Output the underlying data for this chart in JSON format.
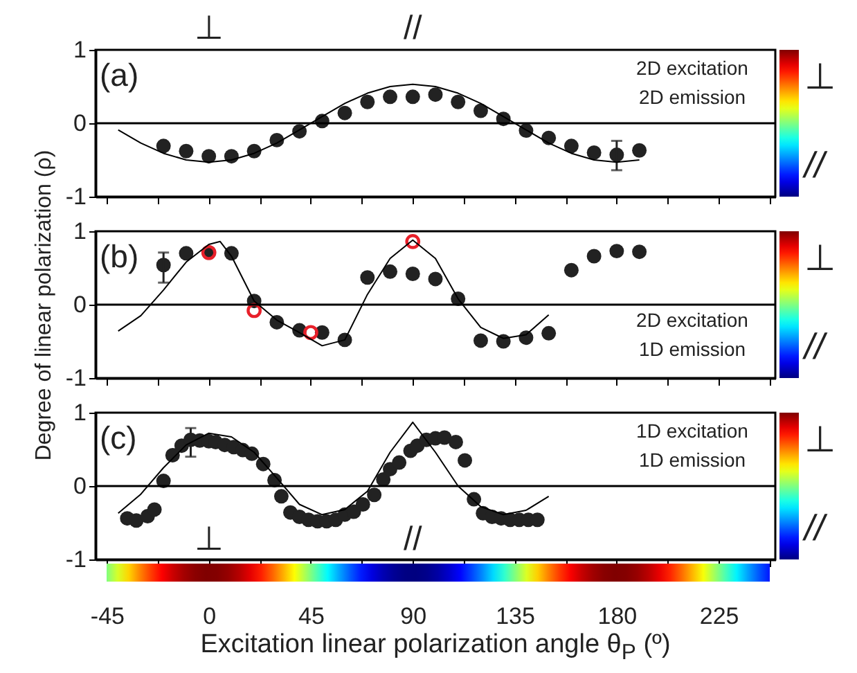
{
  "chart_data": [
    {
      "type": "scatter",
      "xlim": [
        -50,
        250
      ],
      "ylim": [
        -1,
        1
      ],
      "xticks": [
        -45,
        {
          "value": -22.5,
          "label": null
        },
        0,
        {
          "value": 22.5,
          "label": null
        },
        45,
        {
          "value": 67.5,
          "label": null
        },
        90,
        {
          "value": 112.5,
          "label": null
        },
        135,
        {
          "value": 157.5,
          "label": null
        },
        180,
        {
          "value": 202.5,
          "label": null
        },
        225,
        {
          "value": 247.5,
          "label": null
        }
      ],
      "yticks": [
        -1,
        0,
        1
      ],
      "tick_labels": "y",
      "series": [
        {
          "color": "#222222",
          "marker": "circle",
          "x": [
            -20,
            -10,
            0,
            10,
            20,
            30,
            40,
            50,
            60,
            70,
            80,
            90,
            100,
            110,
            120,
            130,
            140,
            150,
            160,
            170,
            180,
            190
          ],
          "values": [
            -0.31,
            -0.38,
            -0.45,
            -0.45,
            -0.38,
            -0.23,
            -0.11,
            0.03,
            0.14,
            0.29,
            0.36,
            0.36,
            0.39,
            0.29,
            0.17,
            0.06,
            -0.1,
            -0.2,
            -0.31,
            -0.4,
            -0.43,
            -0.37
          ],
          "errors": [
            null,
            null,
            null,
            null,
            null,
            null,
            null,
            null,
            null,
            null,
            null,
            null,
            null,
            null,
            null,
            null,
            null,
            null,
            null,
            null,
            [
              -0.64,
              -0.24
            ],
            null
          ]
        },
        {
          "type": "line",
          "color": "#000000",
          "x": [
            -40,
            -30,
            -20,
            -10,
            0,
            10,
            20,
            30,
            40,
            50,
            60,
            70,
            80,
            90,
            100,
            110,
            120,
            130,
            140,
            150,
            160,
            170,
            180,
            190
          ],
          "values": [
            -0.09,
            -0.27,
            -0.41,
            -0.5,
            -0.53,
            -0.5,
            -0.41,
            -0.27,
            -0.09,
            0.09,
            0.27,
            0.41,
            0.5,
            0.53,
            0.5,
            0.41,
            0.27,
            0.09,
            -0.09,
            -0.27,
            -0.41,
            -0.5,
            -0.53,
            -0.5
          ]
        }
      ],
      "ref_lines": [
        {
          "axis": "y",
          "value": 0
        }
      ],
      "annotations": [
        "(a)",
        "2D excitation",
        "2D emission",
        "⊥",
        "//",
        "⊥",
        "//"
      ]
    },
    {
      "type": "scatter",
      "xlim": [
        -50,
        250
      ],
      "ylim": [
        -1,
        1
      ],
      "xticks": [
        -45,
        {
          "value": -22.5,
          "label": null
        },
        0,
        {
          "value": 22.5,
          "label": null
        },
        45,
        {
          "value": 67.5,
          "label": null
        },
        90,
        {
          "value": 112.5,
          "label": null
        },
        135,
        {
          "value": 157.5,
          "label": null
        },
        180,
        {
          "value": 202.5,
          "label": null
        },
        225,
        {
          "value": 247.5,
          "label": null
        }
      ],
      "yticks": [
        -1,
        0,
        1
      ],
      "tick_labels": "y",
      "ylabel": "Degree of linear polarization (ρ)",
      "series": [
        {
          "color": "#222222",
          "marker": "circle",
          "x": [
            -20,
            -10,
            0,
            10,
            20,
            30,
            40,
            50,
            60,
            70,
            80,
            90,
            100,
            110,
            120,
            130,
            140,
            150,
            160,
            170,
            180,
            190
          ],
          "values": [
            0.54,
            0.7,
            0.71,
            0.7,
            0.05,
            -0.24,
            -0.35,
            -0.38,
            -0.48,
            0.37,
            0.45,
            0.42,
            0.35,
            0.08,
            -0.49,
            -0.5,
            -0.45,
            -0.39,
            0.47,
            0.66,
            0.73,
            0.72
          ],
          "errors": [
            [
              0.3,
              0.71
            ],
            null,
            null,
            null,
            null,
            null,
            null,
            null,
            null,
            null,
            null,
            null,
            null,
            null,
            null,
            null,
            null,
            null,
            null,
            null,
            null,
            null
          ]
        },
        {
          "color": "#e8202a",
          "marker": "circle",
          "x": [
            0,
            20,
            45,
            90
          ],
          "values": [
            0.71,
            -0.08,
            -0.38,
            0.86
          ]
        },
        {
          "type": "line",
          "color": "#000000",
          "x": [
            -40,
            -30,
            -20,
            -10,
            0,
            5,
            10,
            20,
            30,
            40,
            50,
            60,
            70,
            80,
            90,
            100,
            110,
            120,
            130,
            140,
            150
          ],
          "values": [
            -0.36,
            -0.15,
            0.2,
            0.58,
            0.82,
            0.86,
            0.66,
            0.05,
            -0.21,
            -0.38,
            -0.56,
            -0.48,
            0.14,
            0.63,
            0.88,
            0.63,
            0.08,
            -0.31,
            -0.46,
            -0.41,
            -0.14
          ]
        }
      ],
      "ref_lines": [
        {
          "axis": "y",
          "value": 0
        }
      ],
      "annotations": [
        "(b)",
        "2D excitation",
        "1D emission",
        "⊥",
        "//"
      ]
    },
    {
      "type": "scatter",
      "xlim": [
        -50,
        250
      ],
      "ylim": [
        -1,
        1
      ],
      "xticks": [
        -45,
        {
          "value": -22.5,
          "label": null
        },
        0,
        {
          "value": 22.5,
          "label": null
        },
        45,
        {
          "value": 67.5,
          "label": null
        },
        90,
        {
          "value": 112.5,
          "label": null
        },
        135,
        {
          "value": 157.5,
          "label": null
        },
        180,
        {
          "value": 202.5,
          "label": null
        },
        225,
        {
          "value": 247.5,
          "label": null
        }
      ],
      "yticks": [
        -1,
        0,
        1
      ],
      "xlabel": "Excitation linear polarization angle θ$_{P}$ (º)",
      "series": [
        {
          "color": "#222222",
          "marker": "circle",
          "x": [
            -36,
            -32,
            -27,
            -24,
            -20,
            -16,
            -12,
            -8,
            -4,
            0,
            3,
            7,
            11,
            15,
            19,
            24,
            29,
            32,
            36,
            40,
            44,
            48,
            52,
            56,
            60,
            64,
            68,
            73,
            77,
            80,
            84,
            89,
            92,
            96,
            100,
            104,
            109,
            113,
            117,
            121,
            125,
            129,
            133,
            137,
            141,
            145
          ],
          "values": [
            -0.44,
            -0.47,
            -0.41,
            -0.32,
            0.07,
            0.42,
            0.55,
            0.63,
            0.62,
            0.61,
            0.6,
            0.56,
            0.53,
            0.49,
            0.44,
            0.3,
            0.08,
            -0.14,
            -0.36,
            -0.42,
            -0.46,
            -0.48,
            -0.48,
            -0.46,
            -0.39,
            -0.35,
            -0.25,
            -0.12,
            0.09,
            0.23,
            0.32,
            0.48,
            0.55,
            0.63,
            0.65,
            0.66,
            0.6,
            0.35,
            -0.18,
            -0.37,
            -0.42,
            -0.44,
            -0.46,
            -0.46,
            -0.46,
            -0.46
          ],
          "errors": [
            null,
            null,
            null,
            null,
            null,
            null,
            null,
            [
              0.4,
              0.79
            ],
            null,
            null,
            null,
            null,
            null,
            null,
            null,
            null,
            null,
            null,
            null,
            null,
            null,
            null,
            null,
            null,
            null,
            null,
            null,
            null,
            null,
            null,
            null,
            null,
            null,
            null,
            null,
            null,
            null,
            null,
            null,
            null,
            null,
            null,
            null,
            null,
            null,
            null
          ]
        },
        {
          "type": "line",
          "color": "#000000",
          "x": [
            -40,
            -30,
            -20,
            -10,
            0,
            10,
            20,
            30,
            40,
            50,
            60,
            70,
            80,
            90,
            100,
            110,
            120,
            130,
            140,
            150
          ],
          "values": [
            -0.37,
            -0.11,
            0.25,
            0.56,
            0.72,
            0.67,
            0.46,
            0.11,
            -0.25,
            -0.39,
            -0.32,
            -0.07,
            0.46,
            0.87,
            0.46,
            0.0,
            -0.28,
            -0.39,
            -0.33,
            -0.14
          ]
        }
      ],
      "ref_lines": [
        {
          "axis": "y",
          "value": 0
        }
      ],
      "annotations": [
        "(c)",
        "1D excitation",
        "1D emission",
        "⊥",
        "//",
        "⊥",
        "//"
      ]
    }
  ]
}
